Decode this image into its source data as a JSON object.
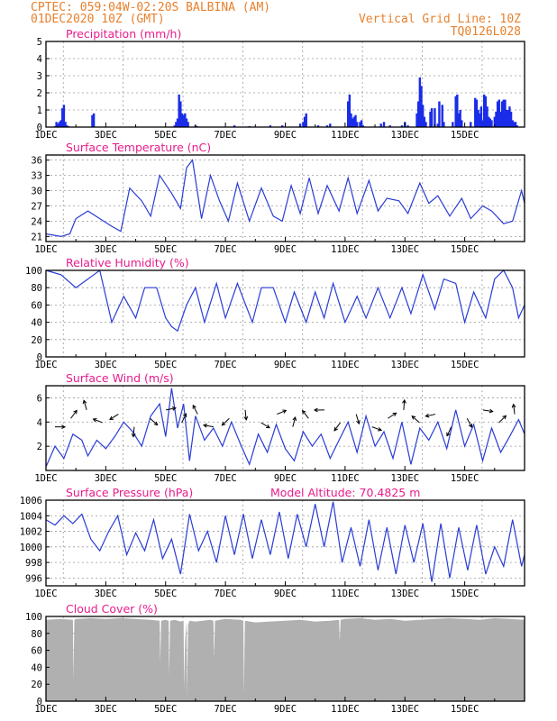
{
  "header": {
    "line1": "CPTEC:   059:04W-02:20S   BALBINA (AM)",
    "line2": "01DEC2020 10Z (GMT)",
    "grid_note": "Vertical Grid Line: 10Z",
    "run_code": "TQ0126L028"
  },
  "colors": {
    "line": "#2a3cd6",
    "bars": "#1a2ce8",
    "cloud": "#b0b0b0",
    "header": "#e8802c",
    "title": "#e81c8c"
  },
  "chart_data": [
    {
      "type": "bar",
      "title": "Precipitation (mm/h)",
      "ylim": [
        0,
        5
      ],
      "yticks": [
        "0",
        "1",
        "2",
        "3",
        "4",
        "5"
      ],
      "xticks": [
        "1DEC",
        "3DEC",
        "5DEC",
        "7DEC",
        "9DEC",
        "11DEC",
        "13DEC",
        "15DEC"
      ],
      "series": [
        {
          "x": [
            0.3,
            0.35,
            0.4,
            0.45,
            0.5,
            0.55,
            0.6,
            0.65,
            0.7,
            0.75,
            1.55,
            1.6,
            4.3,
            4.35,
            4.4,
            4.45,
            4.5,
            4.55,
            4.6,
            4.65,
            4.7,
            4.75,
            5.0,
            5.05,
            6.3,
            6.8,
            7.5,
            7.9,
            8.5,
            8.6,
            8.65,
            8.7,
            9.1,
            9.4,
            9.5,
            10.1,
            10.15,
            10.2,
            10.25,
            10.3,
            10.35,
            10.4,
            10.5,
            10.55,
            10.6,
            11.2,
            11.3,
            11.5,
            11.9,
            12.0,
            12.1,
            12.4,
            12.45,
            12.5,
            12.55,
            12.6,
            12.65,
            12.7,
            12.85,
            12.9,
            13.0,
            13.1,
            13.15,
            13.25,
            13.3,
            13.6,
            13.7,
            13.75,
            13.8,
            13.85,
            13.9,
            14.2,
            14.35,
            14.4,
            14.45,
            14.5,
            14.55,
            14.6,
            14.65,
            14.7,
            14.75,
            14.8,
            14.85,
            14.9,
            15.0,
            15.05,
            15.1,
            15.15,
            15.2,
            15.25,
            15.3,
            15.35,
            15.4,
            15.45,
            15.5,
            15.55,
            15.6,
            15.65,
            15.7,
            15.75
          ],
          "values": [
            0.05,
            0.3,
            0.2,
            0.3,
            0.4,
            1.1,
            1.3,
            0.3,
            0.1,
            0.05,
            0.7,
            0.8,
            0.1,
            0.3,
            0.5,
            1.9,
            1.5,
            0.8,
            0.7,
            0.8,
            0.5,
            0.3,
            0.1,
            0.05,
            0.1,
            0.05,
            0.1,
            0.1,
            0.2,
            0.3,
            0.6,
            0.8,
            0.1,
            0.1,
            0.2,
            1.5,
            1.9,
            0.8,
            0.5,
            0.6,
            0.7,
            0.3,
            0.3,
            0.4,
            0.1,
            0.2,
            0.3,
            0.1,
            0.1,
            0.3,
            0.1,
            0.8,
            1.5,
            2.9,
            2.4,
            1.3,
            0.6,
            0.3,
            0.9,
            1.1,
            1.1,
            0.2,
            1.5,
            1.3,
            0.3,
            0.3,
            1.8,
            1.9,
            0.8,
            1.0,
            0.4,
            0.3,
            1.7,
            1.6,
            1.0,
            0.8,
            1.2,
            0.4,
            1.9,
            1.8,
            1.2,
            0.6,
            0.5,
            0.4,
            0.6,
            0.9,
            1.5,
            1.6,
            0.9,
            1.5,
            1.6,
            1.6,
            1.0,
            1.0,
            1.2,
            0.9,
            0.4,
            0.3,
            0.3,
            0.1
          ]
        }
      ]
    },
    {
      "type": "line",
      "title": "Surface Temperature (nC)",
      "ylim": [
        20,
        37
      ],
      "yticks": [
        "21",
        "24",
        "27",
        "30",
        "33",
        "36"
      ],
      "xticks": [
        "1DEC",
        "3DEC",
        "5DEC",
        "7DEC",
        "9DEC",
        "11DEC",
        "13DEC",
        "15DEC"
      ],
      "series": [
        {
          "x": [
            0.0,
            0.5,
            0.8,
            1.0,
            1.4,
            1.8,
            2.2,
            2.5,
            2.8,
            3.2,
            3.5,
            3.8,
            4.2,
            4.5,
            4.7,
            4.9,
            5.2,
            5.5,
            5.8,
            6.1,
            6.4,
            6.8,
            7.2,
            7.6,
            7.9,
            8.2,
            8.5,
            8.8,
            9.1,
            9.4,
            9.8,
            10.1,
            10.4,
            10.8,
            11.1,
            11.4,
            11.8,
            12.1,
            12.5,
            12.8,
            13.1,
            13.5,
            13.9,
            14.2,
            14.6,
            14.9,
            15.3,
            15.6,
            15.9,
            16.0
          ],
          "values": [
            21.5,
            21.0,
            21.5,
            24.5,
            26.0,
            24.5,
            23.0,
            22.0,
            30.5,
            28.0,
            25.0,
            33.0,
            29.5,
            26.5,
            34.5,
            36.0,
            24.5,
            33.0,
            28.0,
            24.0,
            31.5,
            24.0,
            30.5,
            25.0,
            24.0,
            31.0,
            25.5,
            32.5,
            25.5,
            31.0,
            26.0,
            32.5,
            25.5,
            32.0,
            26.0,
            28.5,
            28.0,
            25.5,
            31.5,
            27.5,
            29.0,
            25.0,
            28.5,
            24.5,
            27.0,
            26.0,
            23.5,
            24.0,
            30.0,
            27.5
          ]
        }
      ]
    },
    {
      "type": "line",
      "title": "Relative Humidity (%)",
      "ylim": [
        0,
        100
      ],
      "yticks": [
        "0",
        "20",
        "40",
        "60",
        "80",
        "100"
      ],
      "xticks": [
        "1DEC",
        "3DEC",
        "5DEC",
        "7DEC",
        "9DEC",
        "11DEC",
        "13DEC",
        "15DEC"
      ],
      "series": [
        {
          "x": [
            0.0,
            0.5,
            1.0,
            1.4,
            1.6,
            1.8,
            2.2,
            2.6,
            3.0,
            3.3,
            3.7,
            4.0,
            4.2,
            4.4,
            4.7,
            5.0,
            5.3,
            5.7,
            6.0,
            6.4,
            6.9,
            7.2,
            7.6,
            8.0,
            8.3,
            8.7,
            9.0,
            9.3,
            9.6,
            10.0,
            10.4,
            10.7,
            11.1,
            11.5,
            11.9,
            12.2,
            12.6,
            13.0,
            13.3,
            13.7,
            14.0,
            14.3,
            14.7,
            15.0,
            15.3,
            15.6,
            15.8,
            16.0
          ],
          "values": [
            100,
            95,
            80,
            90,
            95,
            100,
            40,
            70,
            45,
            80,
            80,
            45,
            35,
            30,
            60,
            80,
            40,
            85,
            45,
            85,
            40,
            80,
            80,
            40,
            75,
            40,
            75,
            45,
            85,
            40,
            70,
            45,
            80,
            45,
            80,
            50,
            95,
            55,
            90,
            85,
            40,
            75,
            45,
            90,
            100,
            80,
            45,
            60
          ]
        }
      ]
    },
    {
      "type": "line",
      "title": "Surface Wind (m/s)",
      "ylim": [
        0,
        7
      ],
      "yticks": [
        "2",
        "4",
        "6"
      ],
      "xticks": [
        "1DEC",
        "3DEC",
        "5DEC",
        "7DEC",
        "9DEC",
        "11DEC",
        "13DEC",
        "15DEC"
      ],
      "series": [
        {
          "x": [
            0.0,
            0.3,
            0.6,
            0.9,
            1.2,
            1.4,
            1.7,
            2.0,
            2.3,
            2.6,
            2.9,
            3.2,
            3.5,
            3.8,
            4.0,
            4.2,
            4.4,
            4.6,
            4.8,
            5.0,
            5.3,
            5.6,
            5.9,
            6.2,
            6.5,
            6.8,
            7.1,
            7.4,
            7.7,
            8.0,
            8.3,
            8.6,
            8.9,
            9.2,
            9.5,
            9.8,
            10.1,
            10.4,
            10.7,
            11.0,
            11.3,
            11.6,
            11.9,
            12.2,
            12.5,
            12.8,
            13.1,
            13.4,
            13.7,
            14.0,
            14.3,
            14.6,
            14.9,
            15.2,
            15.5,
            15.8,
            16.0
          ],
          "values": [
            0.3,
            2.0,
            1.0,
            3.0,
            2.5,
            1.2,
            2.5,
            1.8,
            2.8,
            4.0,
            3.2,
            2.0,
            4.5,
            5.5,
            2.8,
            6.8,
            3.5,
            5.5,
            0.8,
            4.5,
            2.5,
            3.5,
            2.0,
            4.0,
            2.2,
            0.5,
            3.0,
            1.5,
            3.8,
            1.8,
            0.8,
            3.2,
            2.0,
            3.0,
            1.0,
            2.5,
            4.0,
            1.5,
            4.5,
            2.0,
            3.2,
            1.0,
            4.0,
            0.5,
            3.5,
            2.5,
            4.0,
            1.8,
            5.0,
            2.0,
            3.8,
            0.8,
            3.5,
            1.5,
            2.8,
            4.2,
            3.0
          ]
        }
      ]
    },
    {
      "type": "line",
      "title": "Surface Pressure (hPa)",
      "annotation": "Model Altitude: 70.4825 m",
      "ylim": [
        995,
        1006
      ],
      "yticks": [
        "996",
        "998",
        "1000",
        "1002",
        "1004",
        "1006"
      ],
      "xticks": [
        "1DEC",
        "3DEC",
        "5DEC",
        "7DEC",
        "9DEC",
        "11DEC",
        "13DEC",
        "15DEC"
      ],
      "series": [
        {
          "x": [
            0.0,
            0.3,
            0.6,
            0.9,
            1.2,
            1.5,
            1.8,
            2.1,
            2.4,
            2.7,
            3.0,
            3.3,
            3.6,
            3.9,
            4.2,
            4.5,
            4.8,
            5.1,
            5.4,
            5.7,
            6.0,
            6.3,
            6.6,
            6.9,
            7.2,
            7.5,
            7.8,
            8.1,
            8.4,
            8.7,
            9.0,
            9.3,
            9.6,
            9.9,
            10.2,
            10.5,
            10.8,
            11.1,
            11.4,
            11.7,
            12.0,
            12.3,
            12.6,
            12.9,
            13.2,
            13.5,
            13.8,
            14.1,
            14.4,
            14.7,
            15.0,
            15.3,
            15.6,
            15.9,
            16.0
          ],
          "values": [
            1003.5,
            1002.8,
            1004.0,
            1003.0,
            1004.2,
            1001.0,
            999.5,
            1002.0,
            1004.0,
            999.0,
            1001.8,
            999.5,
            1003.5,
            998.5,
            1001.0,
            996.5,
            1004.2,
            999.5,
            1002.0,
            998.0,
            1004.0,
            999.0,
            1004.2,
            998.5,
            1003.5,
            999.0,
            1004.5,
            998.5,
            1004.2,
            1000.0,
            1005.5,
            1000.0,
            1005.8,
            998.0,
            1002.5,
            997.5,
            1003.5,
            997.0,
            1002.5,
            996.5,
            1002.8,
            998.0,
            1003.0,
            995.5,
            1003.0,
            996.0,
            1002.5,
            997.0,
            1002.8,
            996.5,
            1000.0,
            997.5,
            1003.5,
            997.5,
            999.0
          ]
        }
      ]
    },
    {
      "type": "area",
      "title": "Cloud Cover (%)",
      "ylim": [
        0,
        100
      ],
      "yticks": [
        "0",
        "20",
        "40",
        "60",
        "80",
        "100"
      ],
      "xticks": [
        "1DEC",
        "3DEC",
        "5DEC",
        "7DEC",
        "9DEC",
        "11DEC",
        "13DEC",
        "15DEC"
      ],
      "series": [
        {
          "x": [
            0.0,
            0.5,
            0.9,
            0.92,
            0.95,
            1.0,
            1.5,
            2.0,
            2.5,
            3.0,
            3.5,
            3.8,
            3.82,
            3.85,
            4.0,
            4.1,
            4.12,
            4.15,
            4.3,
            4.5,
            4.6,
            4.62,
            4.65,
            4.7,
            4.72,
            4.75,
            4.8,
            5.0,
            5.5,
            5.6,
            5.62,
            5.65,
            6.0,
            6.5,
            6.6,
            6.62,
            6.65,
            7.0,
            7.5,
            8.0,
            8.5,
            9.0,
            9.5,
            9.8,
            9.82,
            9.85,
            10.0,
            10.5,
            11.0,
            11.5,
            12.0,
            12.5,
            13.0,
            13.5,
            14.0,
            14.5,
            15.0,
            15.5,
            16.0
          ],
          "values": [
            96,
            97,
            96,
            25,
            96,
            97,
            98,
            97,
            98,
            97,
            96,
            95,
            45,
            95,
            96,
            95,
            30,
            95,
            96,
            94,
            95,
            15,
            70,
            95,
            5,
            90,
            95,
            94,
            96,
            95,
            50,
            95,
            97,
            96,
            95,
            8,
            95,
            93,
            94,
            95,
            96,
            94,
            95,
            96,
            70,
            96,
            97,
            98,
            96,
            97,
            95,
            96,
            97,
            98,
            97,
            96,
            98,
            97,
            96
          ]
        }
      ]
    }
  ]
}
